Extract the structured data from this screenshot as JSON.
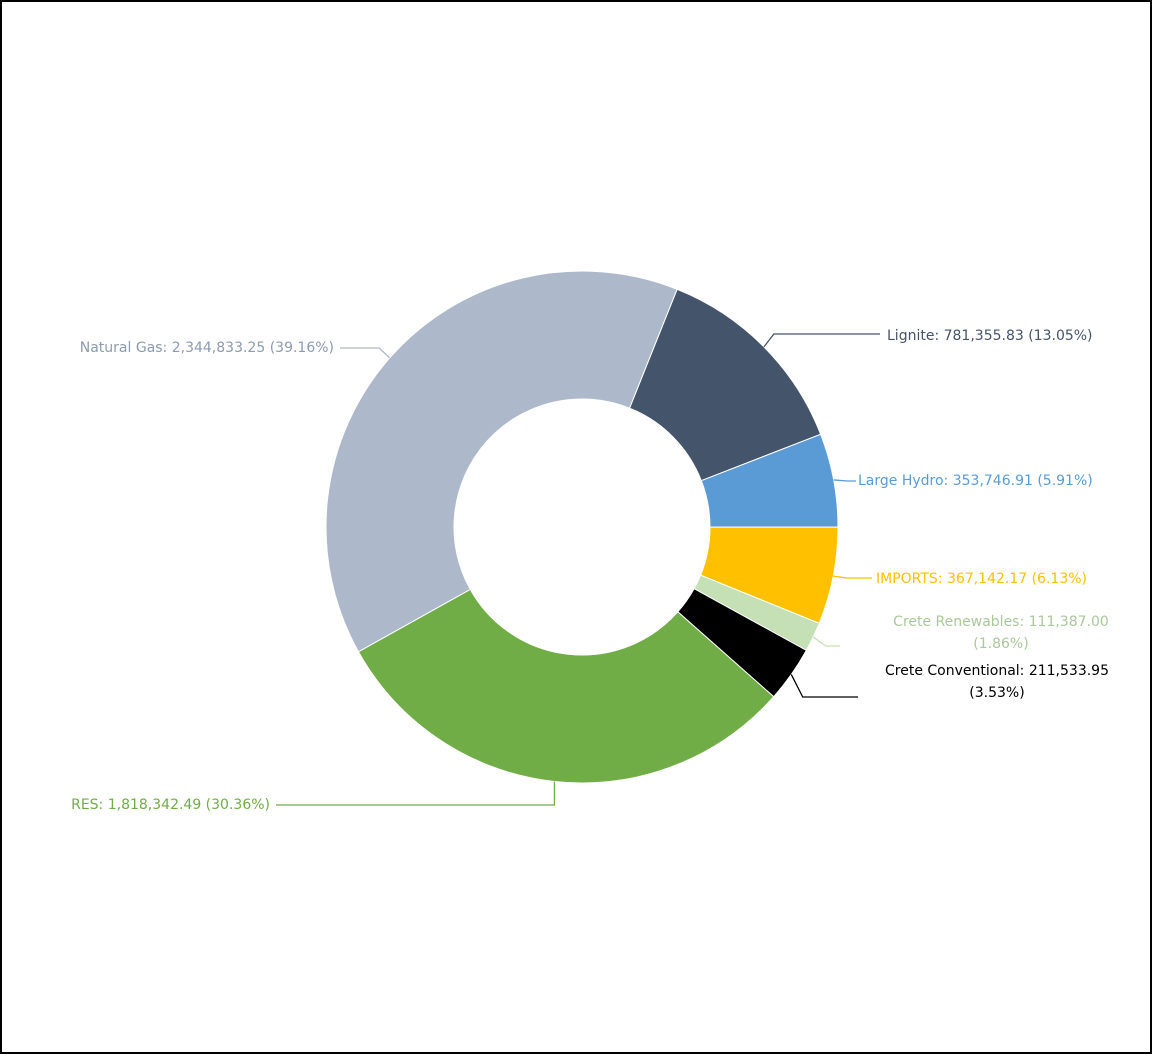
{
  "chart_data": {
    "type": "donut",
    "categories": [
      "Lignite",
      "Large Hydro",
      "IMPORTS",
      "Crete Renewables",
      "Crete Conventional",
      "RES",
      "Natural Gas"
    ],
    "values": [
      781355.83,
      353746.91,
      367142.17,
      111387.0,
      211533.95,
      1818342.49,
      2344833.25
    ],
    "value_labels": [
      "Lignite: 781,355.83 (13.05%)",
      "Large Hydro: 353,746.91 (5.91%)",
      "IMPORTS: 367,142.17 (6.13%)",
      "Crete Renewables: 111,387.00 (1.86%)",
      "Crete Conventional: 211,533.95 (3.53%)",
      "RES: 1,818,342.49 (30.36%)",
      "Natural Gas: 2,344,833.25 (39.16%)"
    ],
    "colors": [
      "#44546a",
      "#5b9bd5",
      "#ffc000",
      "#c5e0b4",
      "#000000",
      "#70ad47",
      "#adb9ca"
    ]
  }
}
